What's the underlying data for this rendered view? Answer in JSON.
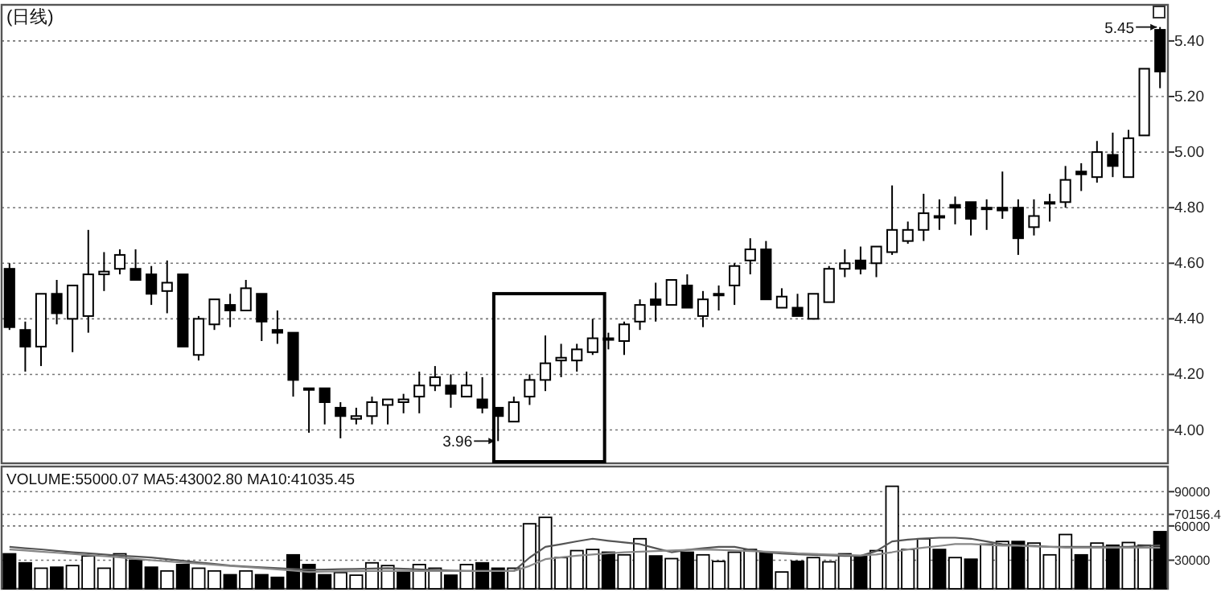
{
  "chart_data": [
    {
      "type": "candlestick",
      "title": "(日线)",
      "categories": [
        null,
        null,
        null,
        null,
        null,
        null,
        null,
        null,
        null,
        null,
        null,
        null,
        null,
        null,
        null,
        null,
        null,
        null,
        null,
        null,
        null,
        null,
        null,
        null,
        null,
        null,
        null,
        null,
        null,
        null,
        null,
        null,
        null,
        null,
        null,
        null,
        null,
        null,
        null,
        null,
        null,
        null,
        null,
        null,
        null,
        null,
        null,
        null,
        null,
        null,
        null,
        null,
        null,
        null,
        null,
        null,
        null,
        null,
        null,
        null,
        null,
        null,
        null,
        null,
        null,
        null,
        null,
        null,
        null,
        null,
        null,
        null,
        null,
        null
      ],
      "ohlc": [
        [
          4.58,
          4.6,
          4.36,
          4.37
        ],
        [
          4.36,
          4.39,
          4.21,
          4.3
        ],
        [
          4.3,
          4.49,
          4.23,
          4.49
        ],
        [
          4.49,
          4.54,
          4.38,
          4.42
        ],
        [
          4.4,
          4.52,
          4.28,
          4.52
        ],
        [
          4.41,
          4.72,
          4.35,
          4.56
        ],
        [
          4.56,
          4.64,
          4.5,
          4.57
        ],
        [
          4.58,
          4.65,
          4.56,
          4.63
        ],
        [
          4.58,
          4.65,
          4.54,
          4.54
        ],
        [
          4.56,
          4.59,
          4.45,
          4.49
        ],
        [
          4.5,
          4.61,
          4.42,
          4.53
        ],
        [
          4.56,
          4.56,
          4.3,
          4.3
        ],
        [
          4.27,
          4.41,
          4.25,
          4.4
        ],
        [
          4.38,
          4.47,
          4.36,
          4.47
        ],
        [
          4.45,
          4.49,
          4.37,
          4.43
        ],
        [
          4.43,
          4.54,
          4.43,
          4.51
        ],
        [
          4.49,
          4.49,
          4.32,
          4.39
        ],
        [
          4.36,
          4.43,
          4.31,
          4.35
        ],
        [
          4.35,
          4.35,
          4.12,
          4.18
        ],
        [
          4.15,
          4.15,
          3.99,
          4.15
        ],
        [
          4.15,
          4.15,
          4.02,
          4.1
        ],
        [
          4.08,
          4.1,
          3.97,
          4.05
        ],
        [
          4.04,
          4.08,
          4.02,
          4.05
        ],
        [
          4.05,
          4.12,
          4.02,
          4.1
        ],
        [
          4.09,
          4.11,
          4.02,
          4.11
        ],
        [
          4.1,
          4.13,
          4.06,
          4.11
        ],
        [
          4.12,
          4.21,
          4.06,
          4.16
        ],
        [
          4.16,
          4.23,
          4.14,
          4.19
        ],
        [
          4.16,
          4.2,
          4.08,
          4.13
        ],
        [
          4.12,
          4.21,
          4.12,
          4.16
        ],
        [
          4.11,
          4.19,
          4.06,
          4.08
        ],
        [
          4.08,
          4.08,
          3.96,
          4.05
        ],
        [
          4.03,
          4.12,
          4.03,
          4.1
        ],
        [
          4.12,
          4.2,
          4.09,
          4.18
        ],
        [
          4.18,
          4.34,
          4.14,
          4.24
        ],
        [
          4.25,
          4.31,
          4.19,
          4.26
        ],
        [
          4.25,
          4.31,
          4.21,
          4.29
        ],
        [
          4.28,
          4.4,
          4.27,
          4.33
        ],
        [
          4.33,
          4.35,
          4.29,
          4.33
        ],
        [
          4.32,
          4.39,
          4.27,
          4.38
        ],
        [
          4.39,
          4.47,
          4.36,
          4.45
        ],
        [
          4.47,
          4.53,
          4.39,
          4.45
        ],
        [
          4.45,
          4.54,
          4.45,
          4.54
        ],
        [
          4.52,
          4.56,
          4.44,
          4.44
        ],
        [
          4.41,
          4.5,
          4.37,
          4.47
        ],
        [
          4.49,
          4.52,
          4.43,
          4.49
        ],
        [
          4.52,
          4.6,
          4.45,
          4.59
        ],
        [
          4.61,
          4.69,
          4.56,
          4.65
        ],
        [
          4.65,
          4.68,
          4.47,
          4.47
        ],
        [
          4.44,
          4.51,
          4.44,
          4.48
        ],
        [
          4.44,
          4.49,
          4.41,
          4.41
        ],
        [
          4.4,
          4.49,
          4.4,
          4.49
        ],
        [
          4.46,
          4.59,
          4.46,
          4.58
        ],
        [
          4.58,
          4.65,
          4.55,
          4.6
        ],
        [
          4.61,
          4.66,
          4.56,
          4.58
        ],
        [
          4.6,
          4.66,
          4.55,
          4.66
        ],
        [
          4.64,
          4.88,
          4.63,
          4.72
        ],
        [
          4.68,
          4.75,
          4.67,
          4.72
        ],
        [
          4.72,
          4.85,
          4.68,
          4.78
        ],
        [
          4.77,
          4.83,
          4.72,
          4.77
        ],
        [
          4.81,
          4.84,
          4.74,
          4.8
        ],
        [
          4.82,
          4.82,
          4.7,
          4.76
        ],
        [
          4.8,
          4.83,
          4.72,
          4.8
        ],
        [
          4.8,
          4.93,
          4.76,
          4.79
        ],
        [
          4.8,
          4.83,
          4.63,
          4.69
        ],
        [
          4.73,
          4.83,
          4.7,
          4.77
        ],
        [
          4.82,
          4.85,
          4.75,
          4.82
        ],
        [
          4.82,
          4.95,
          4.8,
          4.9
        ],
        [
          4.93,
          4.96,
          4.86,
          4.92
        ],
        [
          4.91,
          5.04,
          4.89,
          5.0
        ],
        [
          4.99,
          5.07,
          4.91,
          4.95
        ],
        [
          4.91,
          5.08,
          4.91,
          5.05
        ],
        [
          5.06,
          5.3,
          5.06,
          5.3
        ],
        [
          5.44,
          5.45,
          5.23,
          5.29
        ]
      ],
      "ylim": [
        3.88,
        5.53
      ],
      "yticks": [
        {
          "value": 4,
          "label": "4.00"
        },
        {
          "value": 4.2,
          "label": "4.20"
        },
        {
          "value": 4.4,
          "label": "4.40"
        },
        {
          "value": 4.6,
          "label": "4.60"
        },
        {
          "value": 4.8,
          "label": "4.80"
        },
        {
          "value": 5,
          "label": "5.00"
        },
        {
          "value": 5.2,
          "label": "5.20"
        },
        {
          "value": 5.4,
          "label": "5.40"
        }
      ],
      "grid": "y",
      "tick_labels": "y",
      "annotations": [
        "3.96",
        "5.45"
      ]
    },
    {
      "type": "bar",
      "title": "VOLUME:55000.07  MA5:43002.80  MA10:41035.45",
      "categories": [
        null,
        null,
        null,
        null,
        null,
        null,
        null,
        null,
        null,
        null,
        null,
        null,
        null,
        null,
        null,
        null,
        null,
        null,
        null,
        null,
        null,
        null,
        null,
        null,
        null,
        null,
        null,
        null,
        null,
        null,
        null,
        null,
        null,
        null,
        null,
        null,
        null,
        null,
        null,
        null,
        null,
        null,
        null,
        null,
        null,
        null,
        null,
        null,
        null,
        null,
        null,
        null,
        null,
        null,
        null,
        null,
        null,
        null,
        null,
        null,
        null,
        null,
        null,
        null,
        null,
        null,
        null,
        null,
        null,
        null,
        null,
        null,
        null,
        null
      ],
      "series": [
        {
          "type": "bar",
          "values": [
            35600,
            27700,
            23000,
            23900,
            25300,
            33750,
            23000,
            35600,
            30000,
            23900,
            20600,
            26200,
            23000,
            20600,
            17300,
            20600,
            17300,
            15000,
            34700,
            26200,
            17300,
            19200,
            16900,
            27700,
            25300,
            20600,
            26200,
            23000,
            16900,
            26200,
            27700,
            23000,
            23000,
            61900,
            67500,
            32300,
            38400,
            39400,
            37000,
            34700,
            48800,
            33750,
            31400,
            37000,
            34700,
            29000,
            37000,
            39400,
            37000,
            19700,
            29000,
            32300,
            28600,
            35600,
            33750,
            38400,
            94700,
            39400,
            48800,
            39400,
            32300,
            30900,
            44000,
            46400,
            46400,
            45000,
            34700,
            52500,
            34700,
            45000,
            43100,
            45500,
            43100,
            55000
          ],
          "colors": [
            "#000000",
            "#000000",
            "#ffffff",
            "#000000",
            "#ffffff",
            "#ffffff",
            "#ffffff",
            "#ffffff",
            "#000000",
            "#000000",
            "#ffffff",
            "#000000",
            "#ffffff",
            "#ffffff",
            "#000000",
            "#ffffff",
            "#000000",
            "#000000",
            "#000000",
            "#000000",
            "#000000",
            "#ffffff",
            "#ffffff",
            "#ffffff",
            "#ffffff",
            "#000000",
            "#ffffff",
            "#ffffff",
            "#000000",
            "#ffffff",
            "#000000",
            "#000000",
            "#ffffff",
            "#ffffff",
            "#ffffff",
            "#ffffff",
            "#ffffff",
            "#ffffff",
            "#000000",
            "#ffffff",
            "#ffffff",
            "#000000",
            "#ffffff",
            "#000000",
            "#ffffff",
            "#ffffff",
            "#ffffff",
            "#ffffff",
            "#000000",
            "#ffffff",
            "#000000",
            "#ffffff",
            "#ffffff",
            "#ffffff",
            "#000000",
            "#ffffff",
            "#ffffff",
            "#ffffff",
            "#ffffff",
            "#000000",
            "#ffffff",
            "#000000",
            "#ffffff",
            "#ffffff",
            "#000000",
            "#ffffff",
            "#ffffff",
            "#ffffff",
            "#000000",
            "#ffffff",
            "#000000",
            "#ffffff",
            "#ffffff",
            "#000000"
          ]
        },
        {
          "type": "line",
          "color": "#555555",
          "values": [
            41700,
            40500,
            39500,
            38200,
            37000,
            36000,
            35000,
            34000,
            33200,
            32300,
            31000,
            29500,
            28000,
            26800,
            25300,
            24500,
            23800,
            23000,
            22300,
            21600,
            21800,
            22100,
            22400,
            22700,
            23000,
            22500,
            22000,
            21500,
            21000,
            20600,
            20600,
            20600,
            20600,
            32300,
            41700,
            44000,
            46500,
            48800,
            47000,
            45500,
            44100,
            40500,
            37000,
            39000,
            40500,
            41700,
            41700,
            39000,
            37000,
            35800,
            35200,
            34700,
            34200,
            33700,
            33750,
            38000,
            46400,
            48000,
            49000,
            49700,
            49700,
            48800,
            46400,
            44000,
            43000,
            42500,
            41700,
            41700,
            41700,
            41700,
            41700,
            41700,
            42500,
            43000
          ]
        },
        {
          "type": "line",
          "color": "#888888",
          "values": [
            39400,
            38500,
            37500,
            36500,
            35500,
            34500,
            33500,
            32500,
            31200,
            30000,
            29000,
            28000,
            27000,
            26000,
            25000,
            24000,
            23000,
            22000,
            21000,
            19700,
            20000,
            20200,
            20400,
            20600,
            20600,
            20600,
            20600,
            20600,
            20600,
            20600,
            20600,
            20600,
            20600,
            25000,
            30900,
            32500,
            34000,
            35000,
            36000,
            37000,
            37500,
            38000,
            38500,
            39000,
            39400,
            39000,
            38500,
            38000,
            37500,
            37000,
            36000,
            35500,
            35000,
            34700,
            34200,
            35000,
            37000,
            39400,
            41000,
            42500,
            44100,
            44100,
            43500,
            42700,
            42700,
            42000,
            41700,
            41000,
            41000,
            41000,
            41000,
            41000,
            41000,
            41000
          ]
        }
      ],
      "ylim": [
        5000,
        112000
      ],
      "yticks": [
        30000,
        60000,
        {
          "value": 70156.4,
          "label": "70156.4"
        },
        90000
      ],
      "grid": "y",
      "tick_labels": "y"
    }
  ]
}
